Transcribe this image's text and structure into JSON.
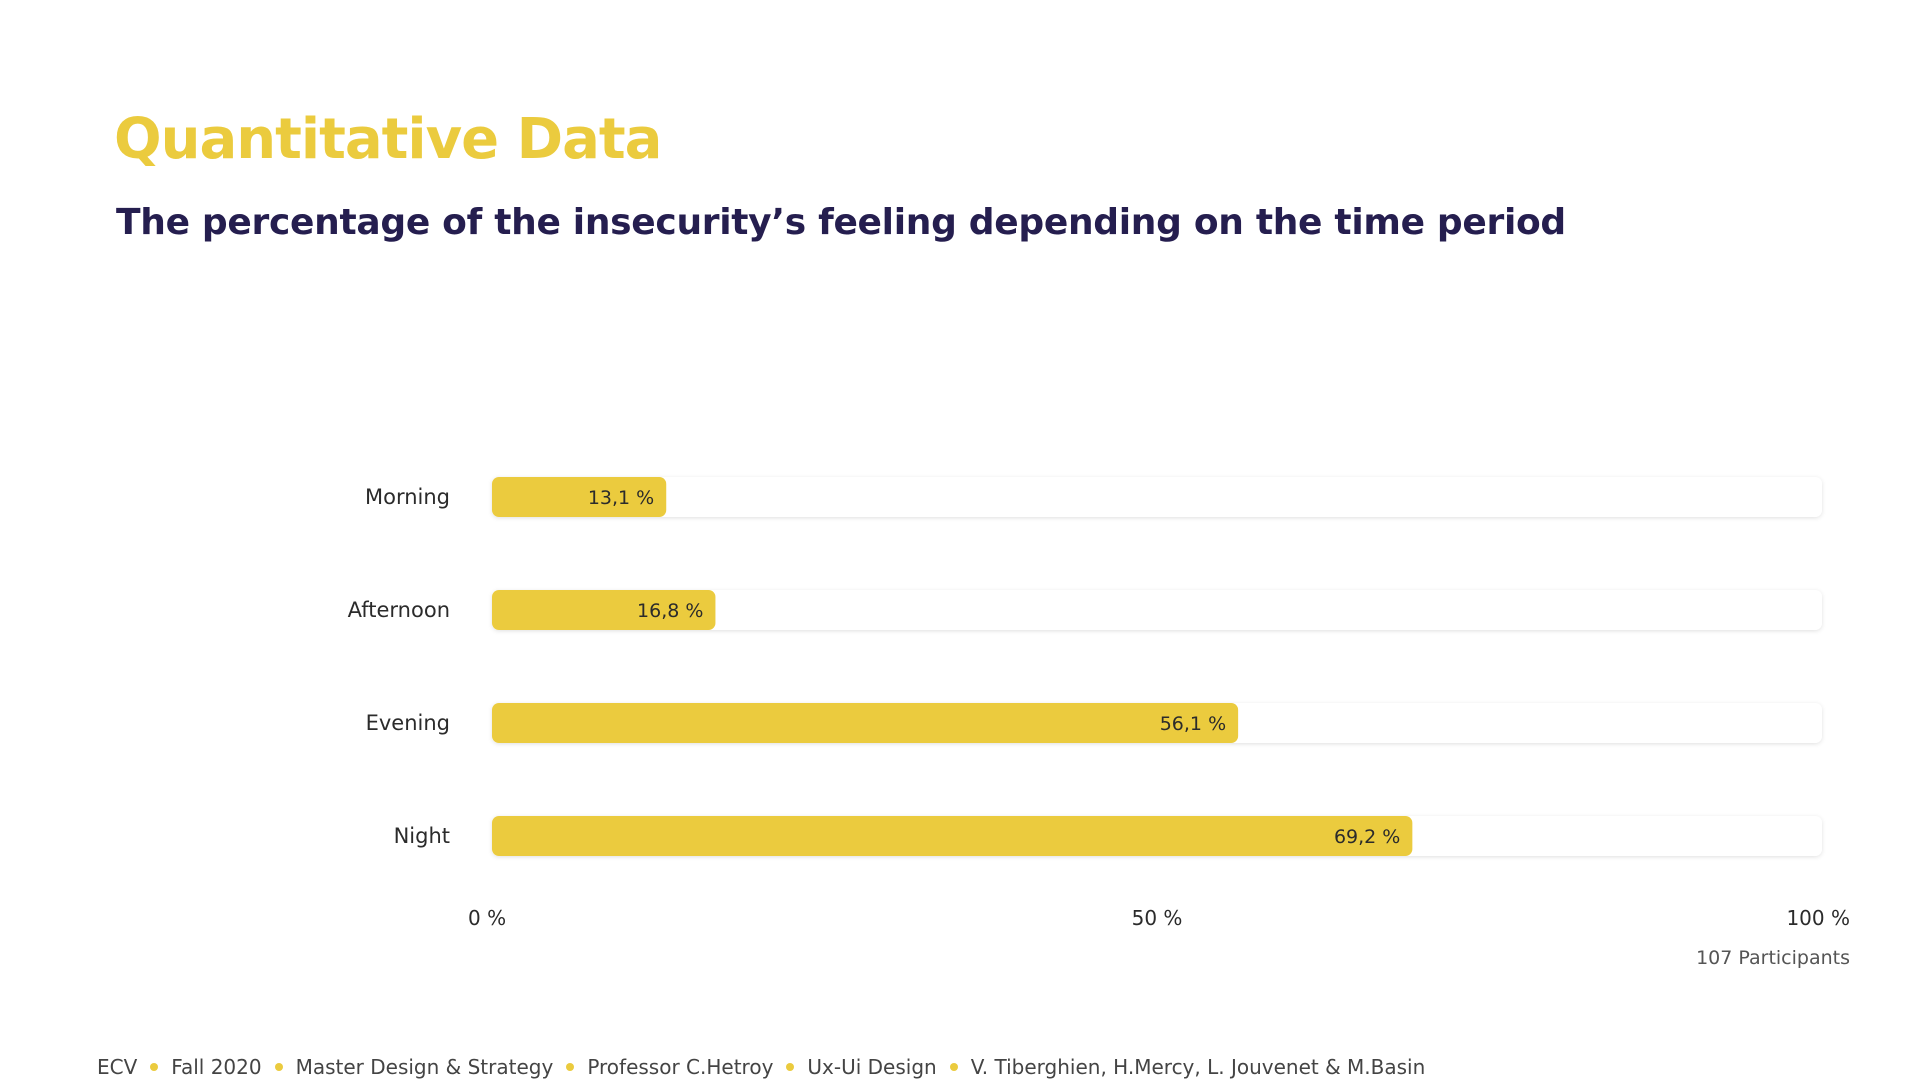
{
  "title": "Quantitative Data",
  "subtitle": "The percentage of the insecurity’s feeling depending on the time period",
  "colors": {
    "accent": "#EBCB3E",
    "heading": "#251E4F",
    "track": "#ffffff"
  },
  "chart_data": {
    "type": "bar",
    "orientation": "horizontal",
    "categories": [
      "Morning",
      "Afternoon",
      "Evening",
      "Night"
    ],
    "values": [
      13.1,
      16.8,
      56.1,
      69.2
    ],
    "value_labels": [
      "13,1 %",
      "16,8 %",
      "56,1 %",
      "69,2 %"
    ],
    "xlim": [
      0,
      100
    ],
    "xticks": [
      0,
      50,
      100
    ],
    "xtick_labels": [
      "0 %",
      "50 %",
      "100 %"
    ],
    "grid": false,
    "note": "107 Participants"
  },
  "footer": {
    "items": [
      "ECV",
      "Fall 2020",
      "Master Design & Strategy",
      "Professor C.Hetroy",
      "Ux-Ui Design",
      "V. Tiberghien, H.Mercy, L. Jouvenet & M.Basin"
    ]
  }
}
